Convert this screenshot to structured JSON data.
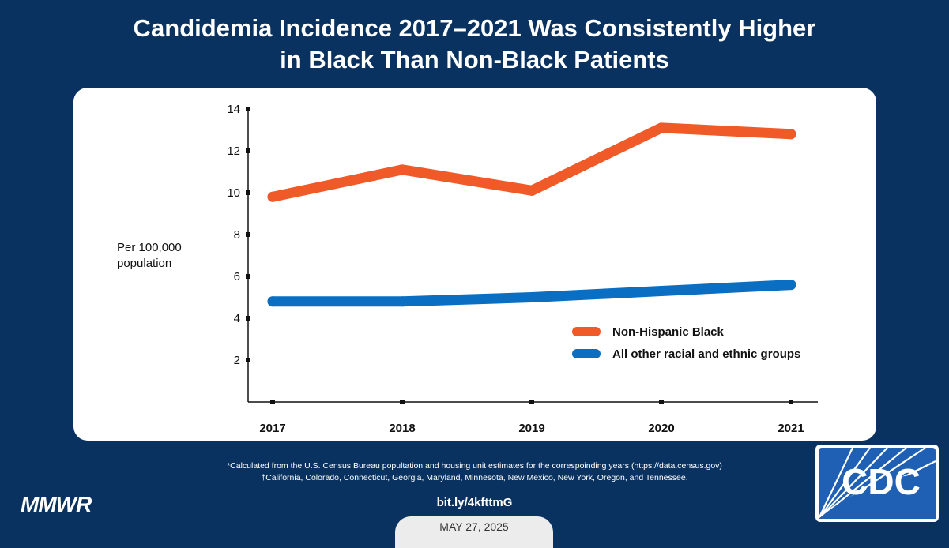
{
  "title": {
    "line1": "Candidemia Incidence 2017–2021 Was Consistently Higher",
    "line2": "in Black Than Non-Black Patients"
  },
  "chart_data": {
    "type": "line",
    "categories": [
      "2017",
      "2018",
      "2019",
      "2020",
      "2021"
    ],
    "series": [
      {
        "name": "Non-Hispanic Black",
        "values": [
          9.8,
          11.1,
          10.1,
          13.1,
          12.8
        ],
        "color": "#f05a28"
      },
      {
        "name": "All other racial and ethnic groups",
        "values": [
          4.8,
          4.8,
          5.0,
          5.3,
          5.6
        ],
        "color": "#0a6fc2"
      }
    ],
    "ylabel_line1": "Per 100,000",
    "ylabel_line2": "population",
    "ylim": [
      0,
      14
    ],
    "yticks": [
      2,
      4,
      6,
      8,
      10,
      12,
      14
    ],
    "legend_position": "center-right",
    "grid": false
  },
  "footnotes": {
    "line1": "*Calculated from the U.S. Census Bureau popultation and housing unit estimates for the correspoinding years (https://data.census.gov)",
    "line2": "†California, Colorado, Connecticut, Georgia, Maryland, Minnesota, New Mexico, New York, Oregon, and Tennessee."
  },
  "brand": {
    "mmwr": "MMWR",
    "cdc": "CDC"
  },
  "link": "bit.ly/4kfttmG",
  "date": "MAY 27, 2025",
  "colors": {
    "background": "#0a3260",
    "card": "#ffffff",
    "cdc_blue": "#1f5fb4"
  }
}
